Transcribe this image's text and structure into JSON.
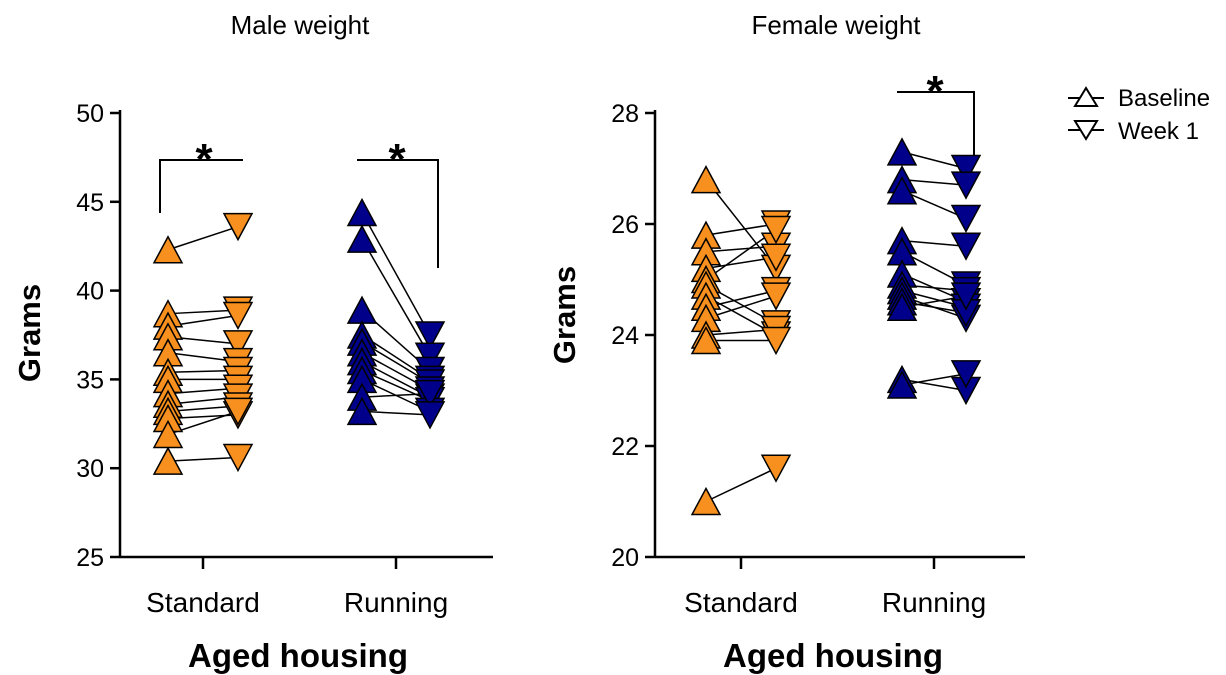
{
  "colors": {
    "standard": "#F7901E",
    "running": "#00008B",
    "stroke": "#000000"
  },
  "legend": [
    {
      "label": "Baseline",
      "marker": "triangle-up"
    },
    {
      "label": "Week 1",
      "marker": "triangle-down"
    }
  ],
  "chart_data": [
    {
      "type": "scatter",
      "title": "Male weight",
      "ylabel": "Grams",
      "xlabel": "Aged housing",
      "ylim": [
        25,
        50
      ],
      "yticks": [
        "25",
        "30",
        "35",
        "40",
        "45",
        "50"
      ],
      "categories": [
        "Standard",
        "Running"
      ],
      "significance": [
        "*",
        "*"
      ],
      "series": [
        {
          "name": "Baseline",
          "group": "Standard",
          "values": [
            42.3,
            38.7,
            38.0,
            37.4,
            36.5,
            35.4,
            35.0,
            34.2,
            33.6,
            33.2,
            32.8,
            31.9,
            30.4
          ]
        },
        {
          "name": "Week 1",
          "group": "Standard",
          "values": [
            43.6,
            38.9,
            38.6,
            37.0,
            36.0,
            35.5,
            35.0,
            34.5,
            34.0,
            33.5,
            33.0,
            33.2,
            30.6
          ]
        },
        {
          "name": "Baseline",
          "group": "Running",
          "values": [
            44.4,
            42.9,
            38.9,
            37.5,
            37.1,
            36.5,
            36.0,
            35.5,
            35.0,
            34.0,
            33.2
          ]
        },
        {
          "name": "Week 1",
          "group": "Running",
          "values": [
            37.5,
            36.3,
            35.5,
            35.0,
            34.8,
            34.4,
            34.0,
            33.8,
            33.2,
            34.2,
            33.0
          ]
        }
      ]
    },
    {
      "type": "scatter",
      "title": "Female weight",
      "ylabel": "Grams",
      "xlabel": "Aged housing",
      "ylim": [
        20,
        28
      ],
      "yticks": [
        "20",
        "22",
        "24",
        "26",
        "28"
      ],
      "categories": [
        "Standard",
        "Running"
      ],
      "significance": [
        "",
        "*"
      ],
      "series": [
        {
          "name": "Baseline",
          "group": "Standard",
          "values": [
            26.8,
            25.8,
            25.5,
            25.2,
            25.0,
            24.9,
            24.7,
            24.5,
            24.3,
            24.0,
            23.9,
            21.0
          ]
        },
        {
          "name": "Week 1",
          "group": "Standard",
          "values": [
            25.2,
            26.0,
            25.6,
            25.4,
            25.9,
            24.2,
            24.0,
            24.8,
            24.7,
            24.1,
            23.9,
            21.6
          ]
        },
        {
          "name": "Baseline",
          "group": "Running",
          "values": [
            27.3,
            26.8,
            26.6,
            25.7,
            25.5,
            25.1,
            24.9,
            24.8,
            24.7,
            24.6,
            24.5,
            23.2,
            23.1
          ]
        },
        {
          "name": "Week 1",
          "group": "Running",
          "values": [
            27.0,
            26.7,
            26.1,
            25.6,
            24.9,
            24.6,
            24.8,
            24.5,
            24.3,
            24.4,
            24.7,
            23.0,
            23.3
          ]
        }
      ]
    }
  ]
}
